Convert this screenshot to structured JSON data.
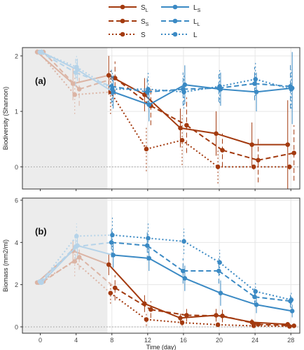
{
  "legend": {
    "items": [
      {
        "label": "S",
        "sub": "L",
        "color": "#a33a0f",
        "dash": "solid"
      },
      {
        "label": "L",
        "sub": "S",
        "color": "#3b8ac4",
        "dash": "solid"
      },
      {
        "label": "S",
        "sub": "S",
        "color": "#a33a0f",
        "dash": "dashed"
      },
      {
        "label": "L",
        "sub": "L",
        "color": "#3b8ac4",
        "dash": "dashed"
      },
      {
        "label": "S",
        "sub": "",
        "color": "#a33a0f",
        "dash": "dotted"
      },
      {
        "label": "L",
        "sub": "",
        "color": "#3b8ac4",
        "dash": "dotted"
      }
    ]
  },
  "colors": {
    "brown": "#a33a0f",
    "blue": "#3b8ac4",
    "early_brown": "#d9b8a8",
    "early_blue": "#b8cbdd",
    "shade": "#ececec",
    "panel_border": "#333333",
    "grid": "#e6e6e6"
  },
  "chart_data": [
    {
      "type": "line",
      "panel_label": "(a)",
      "ylabel": "Biodiversity (Shannon)",
      "xlabel": "",
      "x_ticks": [
        0,
        4,
        8,
        12,
        16,
        20,
        24,
        28
      ],
      "y_ticks": [
        0,
        1,
        2
      ],
      "xlim": [
        -2,
        29
      ],
      "ylim": [
        -0.4,
        2.15
      ],
      "shaded_x_range": [
        -2,
        7.5
      ],
      "reference_line_y": 0,
      "series": [
        {
          "name": "SL",
          "color": "#a33a0f",
          "dash": "solid",
          "x": [
            0,
            4,
            8,
            12,
            16,
            20,
            24,
            28
          ],
          "y": [
            2.07,
            1.5,
            1.65,
            1.3,
            0.7,
            0.6,
            0.4,
            0.4
          ],
          "err": [
            0.05,
            0.3,
            0.35,
            0.3,
            0.35,
            0.4,
            0.4,
            0.8
          ]
        },
        {
          "name": "SS",
          "color": "#a33a0f",
          "dash": "dashed",
          "x": [
            0,
            4,
            8,
            12,
            16,
            20,
            24,
            28
          ],
          "y": [
            2.07,
            1.4,
            1.6,
            1.1,
            0.75,
            0.3,
            0.12,
            0.25
          ],
          "err": [
            0.05,
            0.3,
            0.3,
            0.35,
            0.5,
            0.3,
            0.4,
            0.5
          ]
        },
        {
          "name": "S",
          "color": "#a33a0f",
          "dash": "dotted",
          "x": [
            0,
            4,
            8,
            12,
            16,
            20,
            24,
            28
          ],
          "y": [
            2.07,
            1.3,
            1.35,
            0.32,
            0.48,
            0.0,
            0.0,
            0.0
          ],
          "err": [
            0.05,
            0.35,
            0.4,
            0.4,
            0.45,
            0.3,
            0.05,
            0.05
          ]
        },
        {
          "name": "LS",
          "color": "#3b8ac4",
          "dash": "solid",
          "x": [
            0,
            4,
            8,
            12,
            16,
            20,
            24,
            28
          ],
          "y": [
            2.07,
            1.75,
            1.35,
            1.12,
            1.48,
            1.4,
            1.35,
            1.42
          ],
          "err": [
            0.05,
            0.2,
            0.3,
            0.3,
            0.35,
            0.3,
            0.35,
            0.65
          ]
        },
        {
          "name": "LL",
          "color": "#3b8ac4",
          "dash": "dashed",
          "x": [
            0,
            4,
            8,
            12,
            16,
            20,
            24,
            28
          ],
          "y": [
            2.07,
            1.7,
            1.45,
            1.35,
            1.4,
            1.42,
            1.5,
            1.45
          ],
          "err": [
            0.05,
            0.25,
            0.3,
            0.25,
            0.3,
            0.25,
            0.3,
            0.4
          ]
        },
        {
          "name": "L",
          "color": "#3b8ac4",
          "dash": "dotted",
          "x": [
            0,
            4,
            8,
            12,
            16,
            20,
            24,
            28
          ],
          "y": [
            2.07,
            1.8,
            1.4,
            1.4,
            1.35,
            1.45,
            1.58,
            1.4
          ],
          "err": [
            0.05,
            0.2,
            0.3,
            0.3,
            0.3,
            0.3,
            0.3,
            0.35
          ]
        }
      ]
    },
    {
      "type": "line",
      "panel_label": "(b)",
      "ylabel": "Biomass (mm2/ml)",
      "xlabel": "Time (day)",
      "x_ticks": [
        0,
        4,
        8,
        12,
        16,
        20,
        24,
        28
      ],
      "x_tick_labels": [
        "0",
        "4",
        "8",
        "12",
        "16",
        "20",
        "24",
        "28"
      ],
      "y_ticks": [
        0,
        2,
        4,
        6
      ],
      "xlim": [
        -2,
        29
      ],
      "ylim": [
        -0.3,
        6.1
      ],
      "shaded_x_range": [
        -2,
        7.5
      ],
      "reference_line_y": 0,
      "series": [
        {
          "name": "SL",
          "color": "#a33a0f",
          "dash": "solid",
          "x": [
            0,
            4,
            8,
            12,
            16,
            20,
            24,
            28
          ],
          "y": [
            2.1,
            3.6,
            2.95,
            1.1,
            0.42,
            0.55,
            0.22,
            0.12
          ],
          "err": [
            0.05,
            0.5,
            0.5,
            0.4,
            0.2,
            0.3,
            0.15,
            0.1
          ]
        },
        {
          "name": "SS",
          "color": "#a33a0f",
          "dash": "dashed",
          "x": [
            0,
            4,
            8,
            12,
            16,
            20,
            24,
            28
          ],
          "y": [
            2.15,
            3.3,
            1.85,
            0.82,
            0.55,
            0.52,
            0.12,
            0.05
          ],
          "err": [
            0.05,
            0.6,
            0.6,
            0.4,
            0.3,
            0.3,
            0.1,
            0.05
          ]
        },
        {
          "name": "S",
          "color": "#a33a0f",
          "dash": "dotted",
          "x": [
            0,
            4,
            8,
            12,
            16,
            20,
            24,
            28
          ],
          "y": [
            2.1,
            3.1,
            1.6,
            0.35,
            0.2,
            0.1,
            0.05,
            0.02
          ],
          "err": [
            0.05,
            0.7,
            0.5,
            0.3,
            0.15,
            0.1,
            0.05,
            0.02
          ]
        },
        {
          "name": "LS",
          "color": "#3b8ac4",
          "dash": "solid",
          "x": [
            0,
            4,
            8,
            12,
            16,
            20,
            24,
            28
          ],
          "y": [
            2.1,
            3.85,
            3.4,
            3.25,
            2.3,
            1.6,
            1.05,
            0.75
          ],
          "err": [
            0.05,
            0.5,
            0.6,
            0.6,
            0.6,
            0.6,
            0.4,
            0.3
          ]
        },
        {
          "name": "LL",
          "color": "#3b8ac4",
          "dash": "dashed",
          "x": [
            0,
            4,
            8,
            12,
            16,
            20,
            24,
            28
          ],
          "y": [
            2.15,
            3.8,
            4.0,
            3.85,
            2.65,
            2.65,
            1.42,
            1.22
          ],
          "err": [
            0.05,
            0.6,
            0.7,
            0.7,
            0.6,
            0.6,
            0.4,
            0.3
          ]
        },
        {
          "name": "L",
          "color": "#3b8ac4",
          "dash": "dotted",
          "x": [
            0,
            4,
            8,
            12,
            16,
            20,
            24,
            28
          ],
          "y": [
            2.1,
            4.3,
            4.35,
            4.2,
            4.05,
            3.05,
            1.68,
            1.28
          ],
          "err": [
            0.05,
            0.6,
            0.9,
            0.7,
            0.6,
            0.6,
            0.5,
            0.4
          ]
        }
      ]
    }
  ]
}
